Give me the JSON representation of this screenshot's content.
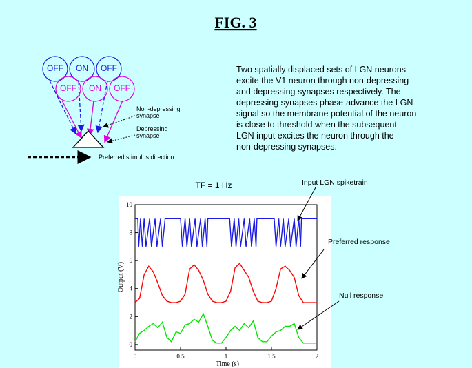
{
  "figure_title": "FIG. 3",
  "diagram": {
    "top_row": [
      "OFF",
      "ON",
      "OFF"
    ],
    "bottom_row": [
      "OFF",
      "ON",
      "OFF"
    ],
    "non_depressing_label": [
      "Non-depressing",
      "synapse"
    ],
    "depressing_label": [
      "Depressing",
      "synapse"
    ],
    "direction_label": "Preferred stimulus direction"
  },
  "description": [
    "Two spatially displaced sets of LGN neurons",
    "excite the V1 neuron through non-depressing",
    "and depressing synapses respectively. The",
    "depressing synapses phase-advance the LGN",
    "signal so the membrane potential of the neuron",
    "is close to threshold when the subsequent",
    "LGN input excites the neuron through the",
    "non-depressing synapses."
  ],
  "chart_data": {
    "type": "line",
    "title": "TF = 1 Hz",
    "x_label": "Time (s)",
    "y_label": "Output (V)",
    "xlim": [
      0,
      2
    ],
    "ylim": [
      -0.4,
      10
    ],
    "xticks": [
      0,
      0.5,
      1,
      1.5,
      2
    ],
    "yticks": [
      0,
      2,
      4,
      6,
      8,
      10
    ],
    "series": [
      {
        "name": "Input LGN spiketrain",
        "color": "#1a1ae6",
        "x": [
          0,
          0.03,
          0.04,
          0.06,
          0.08,
          0.1,
          0.12,
          0.16,
          0.18,
          0.22,
          0.24,
          0.28,
          0.3,
          0.33,
          0.5,
          0.52,
          0.55,
          0.57,
          0.6,
          0.62,
          0.66,
          0.68,
          0.72,
          0.74,
          0.77,
          0.79,
          0.8,
          1.04,
          1.06,
          1.09,
          1.11,
          1.14,
          1.16,
          1.2,
          1.22,
          1.26,
          1.28,
          1.31,
          1.33,
          1.34,
          1.53,
          1.55,
          1.58,
          1.6,
          1.63,
          1.65,
          1.69,
          1.71,
          1.75,
          1.77,
          1.8,
          1.82,
          1.83,
          2
        ],
        "values": [
          9,
          9,
          7,
          9,
          7,
          9,
          7,
          9,
          7,
          9,
          7,
          9,
          7,
          9,
          9,
          7,
          9,
          7,
          9,
          7,
          9,
          7,
          9,
          7,
          9,
          7,
          9,
          9,
          7,
          9,
          7,
          9,
          7,
          9,
          7,
          9,
          7,
          9,
          7,
          9,
          9,
          7,
          9,
          7,
          9,
          7,
          9,
          7,
          9,
          7,
          9,
          7,
          9,
          9
        ]
      },
      {
        "name": "Preferred response",
        "color": "#ff0000",
        "x": [
          0,
          0.05,
          0.1,
          0.15,
          0.2,
          0.25,
          0.3,
          0.35,
          0.4,
          0.45,
          0.5,
          0.55,
          0.6,
          0.65,
          0.7,
          0.75,
          0.8,
          0.85,
          0.9,
          0.95,
          1,
          1.05,
          1.1,
          1.15,
          1.2,
          1.25,
          1.3,
          1.35,
          1.4,
          1.45,
          1.5,
          1.55,
          1.6,
          1.65,
          1.7,
          1.75,
          1.8,
          1.85,
          1.9,
          1.95,
          2
        ],
        "values": [
          3,
          3.3,
          5,
          5.6,
          5.2,
          4.4,
          3.5,
          3.1,
          3,
          3,
          3.1,
          3.6,
          5.4,
          5.7,
          5.3,
          4.6,
          3.6,
          3.1,
          3,
          3,
          3.1,
          3.8,
          5.5,
          5.8,
          5.3,
          4.8,
          3.8,
          3.1,
          3,
          3,
          3.1,
          4,
          5.4,
          5.6,
          5.3,
          4.8,
          3.5,
          3,
          3,
          3,
          3
        ]
      },
      {
        "name": "Null response",
        "color": "#00e600",
        "x": [
          0,
          0.05,
          0.1,
          0.15,
          0.2,
          0.25,
          0.3,
          0.35,
          0.4,
          0.45,
          0.5,
          0.55,
          0.6,
          0.65,
          0.7,
          0.75,
          0.8,
          0.85,
          0.9,
          0.95,
          1,
          1.05,
          1.1,
          1.15,
          1.2,
          1.25,
          1.3,
          1.35,
          1.4,
          1.45,
          1.5,
          1.55,
          1.6,
          1.65,
          1.7,
          1.75,
          1.8,
          1.85,
          1.9,
          1.95,
          2
        ],
        "values": [
          0.2,
          0.8,
          1,
          1.3,
          1.5,
          1.2,
          1.6,
          0.5,
          0.2,
          0.9,
          0.8,
          1.4,
          1.5,
          1.8,
          1.6,
          2.2,
          1.3,
          0.3,
          0.1,
          0.1,
          0.5,
          1,
          1.3,
          1,
          1.5,
          1.2,
          1.7,
          0.5,
          0.2,
          0.2,
          0.6,
          0.9,
          1,
          1.3,
          1.3,
          1.5,
          0.5,
          0.1,
          0.1,
          0.1,
          0.1
        ]
      }
    ]
  }
}
